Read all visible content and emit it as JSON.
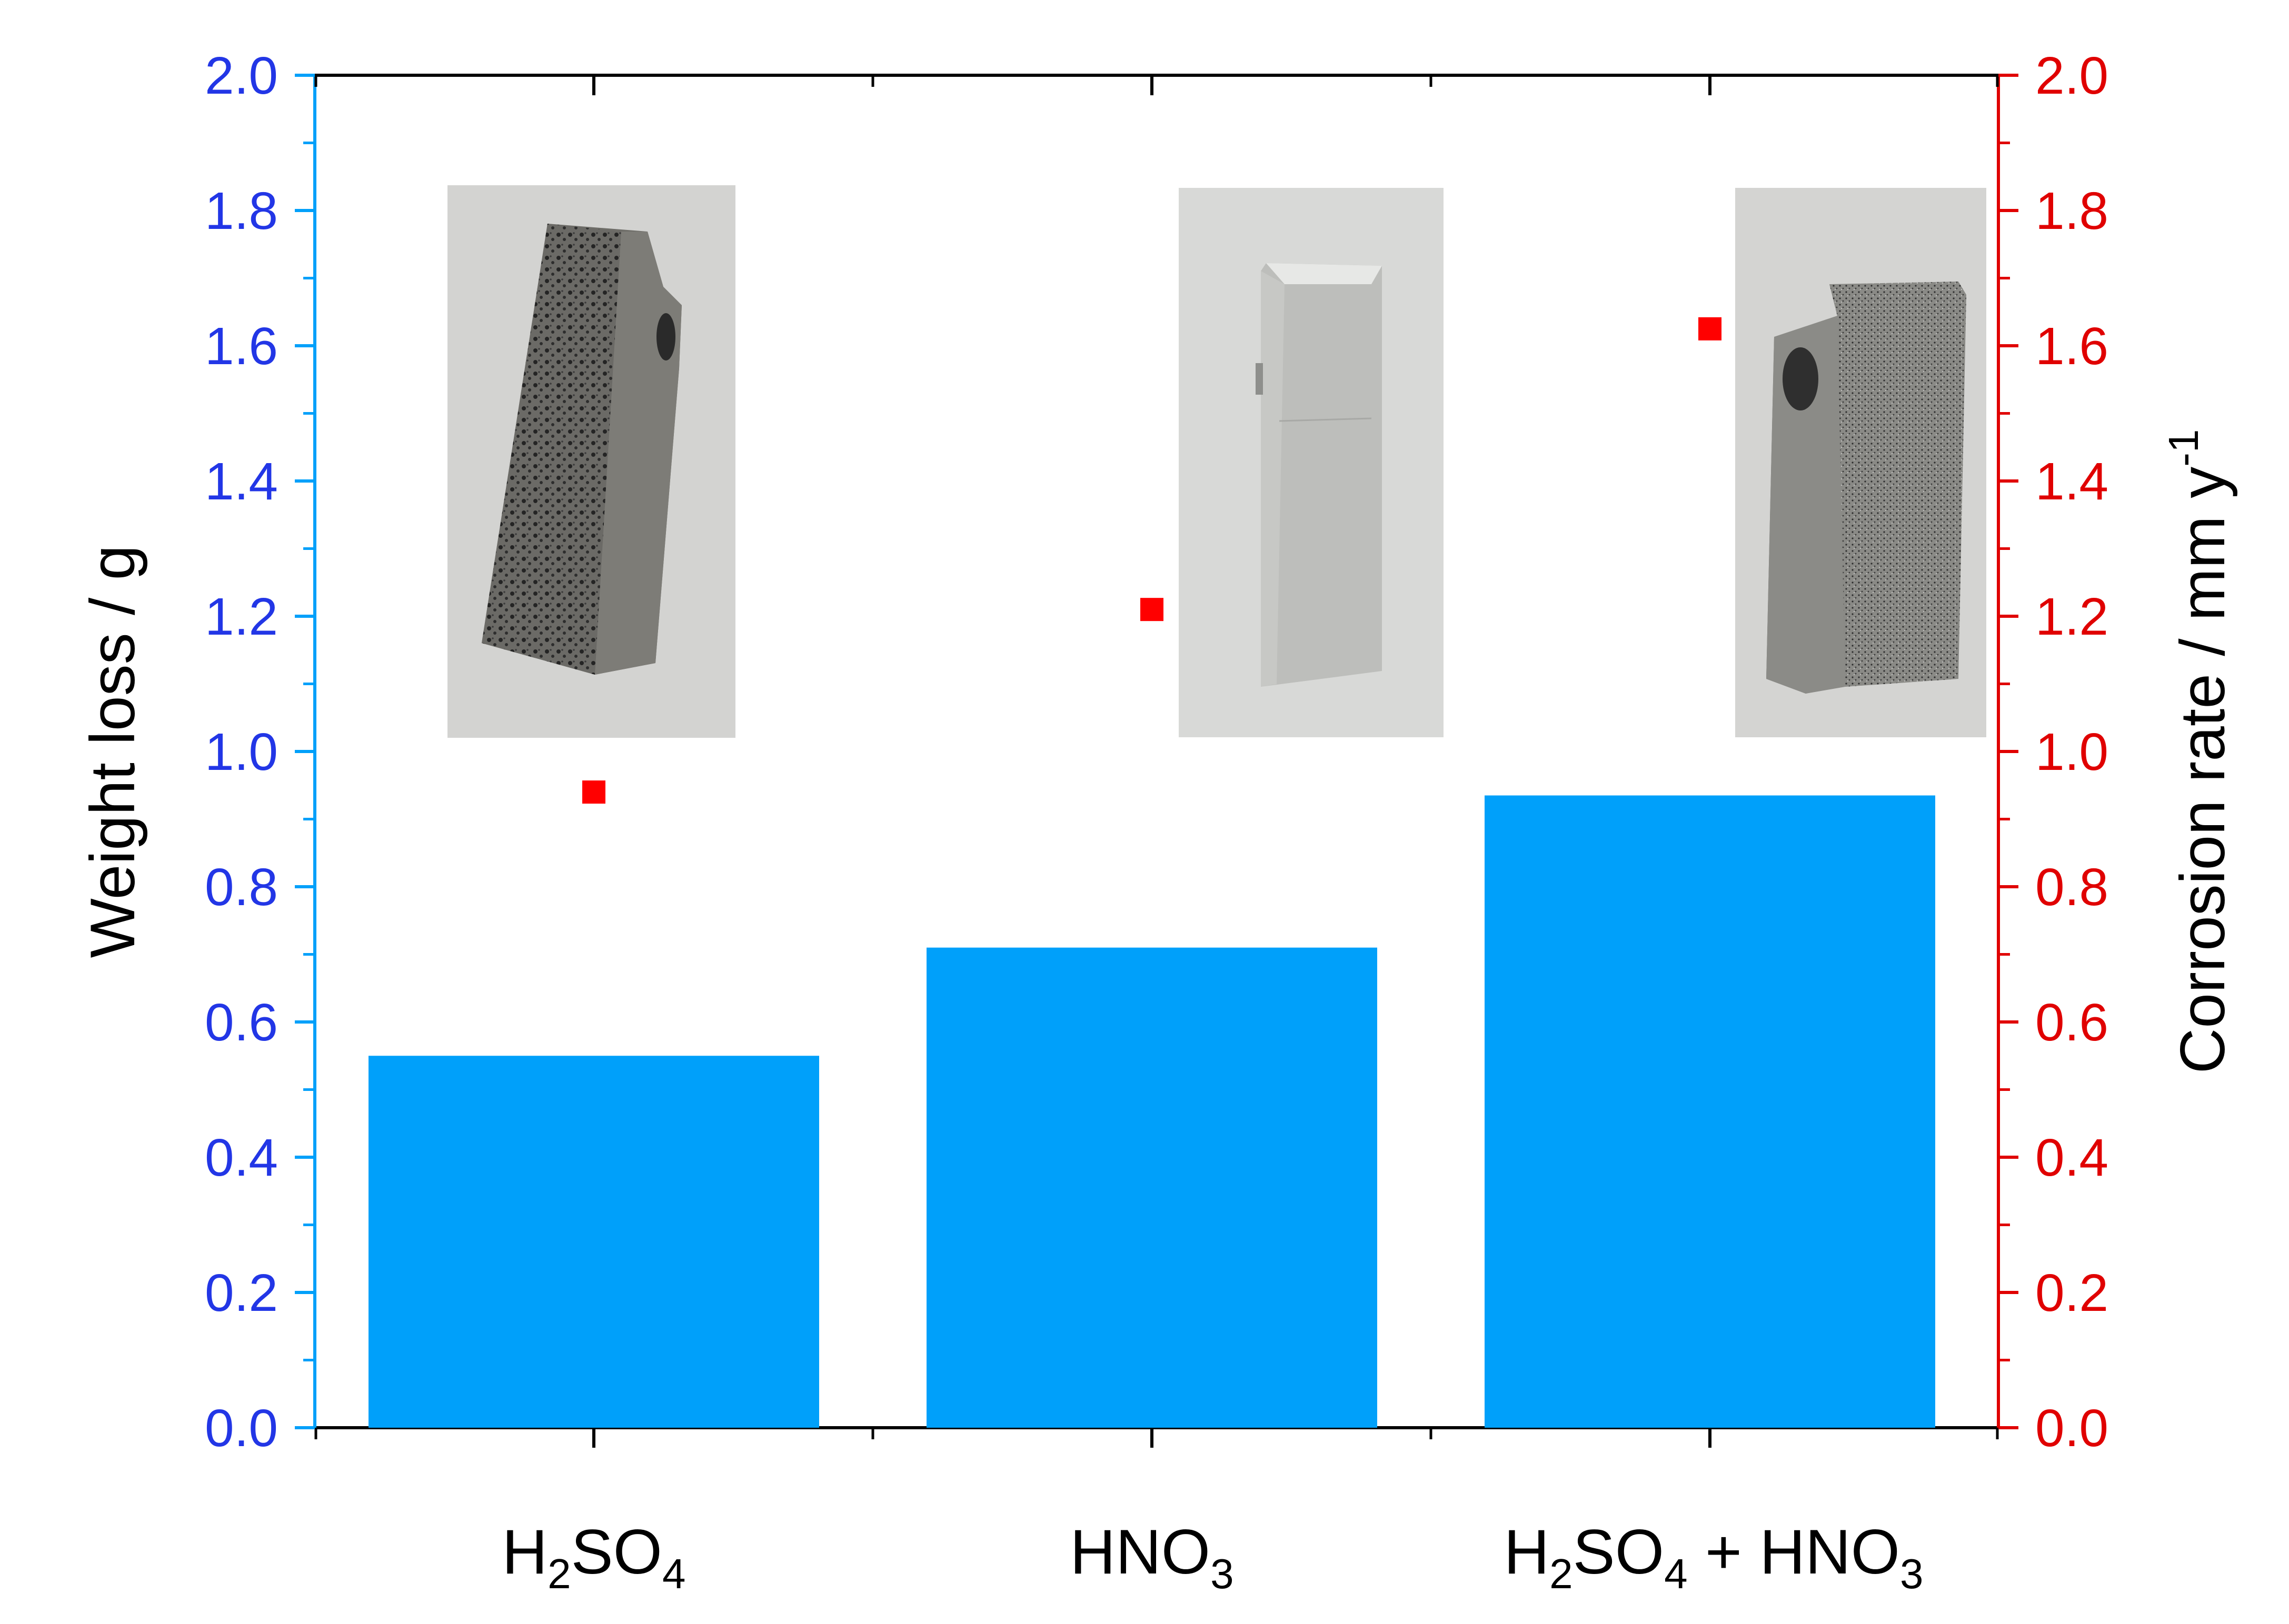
{
  "chart_data": {
    "type": "bar",
    "categories": [
      {
        "base": "H",
        "sub1": "2",
        "mid": "SO",
        "sub2": "4",
        "tail": ""
      },
      {
        "base": "HNO",
        "sub1": "3",
        "mid": "",
        "sub2": "",
        "tail": ""
      },
      {
        "base": "H",
        "sub1": "2",
        "mid": "SO",
        "sub2": "4",
        "tail": " + HNO",
        "sub3": "3"
      }
    ],
    "series": [
      {
        "axis": "left",
        "marker": "bar",
        "color": "#00a0fa",
        "values": [
          0.55,
          0.71,
          0.935
        ]
      },
      {
        "axis": "right",
        "marker": "square",
        "color": "#ff0000",
        "values": [
          0.94,
          1.21,
          1.625
        ]
      }
    ],
    "ylabel_left": "Weight loss / g",
    "ylabel_right_main": "Corrosion rate / mm y",
    "ylabel_right_sup": "-1",
    "ylim_left": [
      0,
      2.0
    ],
    "ylim_right": [
      0,
      2.0
    ],
    "yticks_left": [
      "0.0",
      "0.2",
      "0.4",
      "0.6",
      "0.8",
      "1.0",
      "1.2",
      "1.4",
      "1.6",
      "1.8",
      "2.0"
    ],
    "yticks_right": [
      "0.0",
      "0.2",
      "0.4",
      "0.6",
      "0.8",
      "1.0",
      "1.2",
      "1.4",
      "1.6",
      "1.8",
      "2.0"
    ],
    "left_axis_color": "#2236e6",
    "right_axis_color": "#e00000",
    "grid": false,
    "inset_photos": [
      {
        "category_index": 0,
        "content": "photo-sample-h2so4-pitted"
      },
      {
        "category_index": 1,
        "content": "photo-sample-hno3-smooth"
      },
      {
        "category_index": 2,
        "content": "photo-sample-mixed-speckled"
      }
    ]
  }
}
